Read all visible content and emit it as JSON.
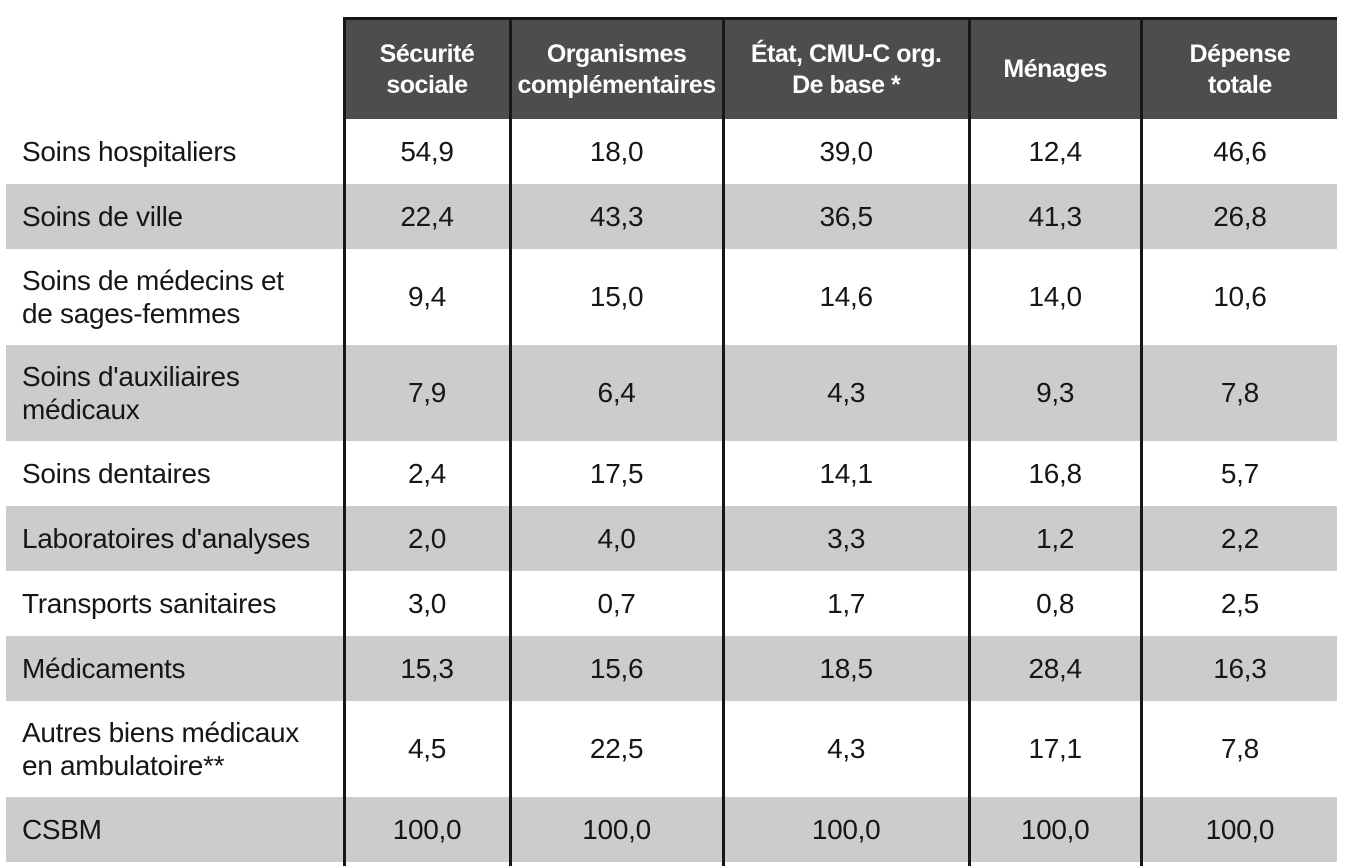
{
  "table": {
    "corner_label": "",
    "columns": [
      "Sécurité\nsociale",
      "Organismes\ncomplémentaires",
      "État, CMU-C org.\nDe base *",
      "Ménages",
      "Dépense\ntotale"
    ],
    "rows": [
      {
        "label": "Soins hospitaliers",
        "values": [
          "54,9",
          "18,0",
          "39,0",
          "12,4",
          "46,6"
        ]
      },
      {
        "label": "Soins de ville",
        "values": [
          "22,4",
          "43,3",
          "36,5",
          "41,3",
          "26,8"
        ]
      },
      {
        "label": "Soins de médecins et\nde sages-femmes",
        "values": [
          "9,4",
          "15,0",
          "14,6",
          "14,0",
          "10,6"
        ]
      },
      {
        "label": "Soins d'auxiliaires\nmédicaux",
        "values": [
          "7,9",
          "6,4",
          "4,3",
          "9,3",
          "7,8"
        ]
      },
      {
        "label": "Soins dentaires",
        "values": [
          "2,4",
          "17,5",
          "14,1",
          "16,8",
          "5,7"
        ]
      },
      {
        "label": "Laboratoires d'analyses",
        "values": [
          "2,0",
          "4,0",
          "3,3",
          "1,2",
          "2,2"
        ]
      },
      {
        "label": "Transports sanitaires",
        "values": [
          "3,0",
          "0,7",
          "1,7",
          "0,8",
          "2,5"
        ]
      },
      {
        "label": "Médicaments",
        "values": [
          "15,3",
          "15,6",
          "18,5",
          "28,4",
          "16,3"
        ]
      },
      {
        "label": "Autres biens médicaux\nen ambulatoire**",
        "values": [
          "4,5",
          "22,5",
          "4,3",
          "17,1",
          "7,8"
        ]
      },
      {
        "label": "CSBM",
        "values": [
          "100,0",
          "100,0",
          "100,0",
          "100,0",
          "100,0"
        ]
      }
    ]
  },
  "colors": {
    "header_bg": "#4d4d4d",
    "header_text": "#ffffff",
    "row_alt_bg": "#cccccc",
    "row_bg": "#ffffff",
    "border": "#171717",
    "body_text": "#161616"
  },
  "chart_data": {
    "type": "table",
    "title": "",
    "categories": [
      "Soins hospitaliers",
      "Soins de ville",
      "Soins de médecins et de sages-femmes",
      "Soins d'auxiliaires médicaux",
      "Soins dentaires",
      "Laboratoires d'analyses",
      "Transports sanitaires",
      "Médicaments",
      "Autres biens médicaux en ambulatoire**",
      "CSBM"
    ],
    "series": [
      {
        "name": "Sécurité sociale",
        "values": [
          54.9,
          22.4,
          9.4,
          7.9,
          2.4,
          2.0,
          3.0,
          15.3,
          4.5,
          100.0
        ]
      },
      {
        "name": "Organismes complémentaires",
        "values": [
          18.0,
          43.3,
          15.0,
          6.4,
          17.5,
          4.0,
          0.7,
          15.6,
          22.5,
          100.0
        ]
      },
      {
        "name": "État, CMU-C org. De base *",
        "values": [
          39.0,
          36.5,
          14.6,
          4.3,
          14.1,
          3.3,
          1.7,
          18.5,
          4.3,
          100.0
        ]
      },
      {
        "name": "Ménages",
        "values": [
          12.4,
          41.3,
          14.0,
          9.3,
          16.8,
          1.2,
          0.8,
          28.4,
          17.1,
          100.0
        ]
      },
      {
        "name": "Dépense totale",
        "values": [
          46.6,
          26.8,
          10.6,
          7.8,
          5.7,
          2.2,
          2.5,
          16.3,
          7.8,
          100.0
        ]
      }
    ]
  }
}
